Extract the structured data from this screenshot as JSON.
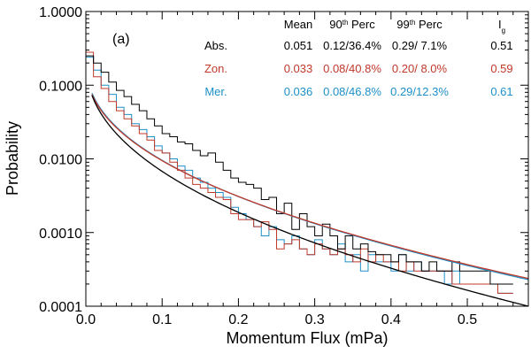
{
  "chart_data": {
    "type": "line",
    "panel_label": "(a)",
    "xlabel": "Momentum Flux (mPa)",
    "ylabel": "Probability",
    "xlim": [
      0,
      0.58
    ],
    "ylim": [
      0.0001,
      1.0
    ],
    "yscale": "log",
    "x_ticks": [
      0.0,
      0.1,
      0.2,
      0.3,
      0.4,
      0.5
    ],
    "x_tick_labels": [
      "0.0",
      "0.1",
      "0.2",
      "0.3",
      "0.4",
      "0.5"
    ],
    "y_ticks": [
      0.0001,
      0.001,
      0.01,
      0.1,
      1.0
    ],
    "y_tick_labels": [
      "0.0001",
      "0.0010",
      "0.0100",
      "0.1000",
      "1.0000"
    ],
    "grid": false,
    "bin_width": 0.01,
    "series": [
      {
        "name": "Abs.",
        "color": "#000000",
        "style": "step",
        "x_start": 0.0,
        "values": [
          0.25,
          0.2,
          0.15,
          0.11,
          0.085,
          0.07,
          0.055,
          0.045,
          0.035,
          0.028,
          0.022,
          0.02,
          0.017,
          0.016,
          0.013,
          0.011,
          0.012,
          0.009,
          0.007,
          0.0055,
          0.0048,
          0.0045,
          0.004,
          0.0028,
          0.003,
          0.0018,
          0.0025,
          0.0011,
          0.0018,
          0.0012,
          0.0009,
          0.0013,
          0.0009,
          0.0006,
          0.0009,
          0.0006,
          0.0007,
          0.00055,
          0.0005,
          0.0005,
          0.0004,
          0.0005,
          0.0004,
          0.0004,
          0.0003,
          0.0004,
          0.0003,
          0.0003,
          0.0004,
          0.0003,
          0.0003,
          0.0003,
          0.0003,
          0.0002,
          0.0002,
          0.0002
        ]
      },
      {
        "name": "Zon.",
        "color": "#c0392b",
        "style": "step",
        "x_start": 0.0,
        "values": [
          0.28,
          0.13,
          0.09,
          0.06,
          0.045,
          0.035,
          0.028,
          0.022,
          0.018,
          0.013,
          0.012,
          0.009,
          0.007,
          0.0055,
          0.0045,
          0.004,
          0.0035,
          0.003,
          0.0028,
          0.0018,
          0.0015,
          0.0015,
          0.0012,
          0.0014,
          0.0011,
          0.0006,
          0.0007,
          0.0008,
          0.0006,
          0.0005,
          0.0007,
          0.0006,
          0.0005,
          0.0006,
          0.0005,
          0.0004,
          0.0006,
          0.0004,
          0.0005,
          0.0004,
          0.0004,
          0.0003,
          0.0004,
          0.0003,
          0.0003,
          0.0003,
          0.0003,
          0.0003,
          0.0002,
          0.0002,
          0.0002,
          0.0002,
          0.0002,
          0.0002,
          0.00015,
          0.00015
        ]
      },
      {
        "name": "Mer.",
        "color": "#1e90c8",
        "style": "step",
        "x_start": 0.0,
        "values": [
          0.24,
          0.16,
          0.1,
          0.075,
          0.05,
          0.04,
          0.03,
          0.025,
          0.02,
          0.015,
          0.012,
          0.01,
          0.008,
          0.007,
          0.0055,
          0.0048,
          0.004,
          0.0035,
          0.003,
          0.0022,
          0.0018,
          0.0015,
          0.0012,
          0.0009,
          0.0012,
          0.0008,
          0.0007,
          0.0009,
          0.0006,
          0.0005,
          0.0008,
          0.0006,
          0.0005,
          0.0007,
          0.0004,
          0.0005,
          0.0003,
          0.0005,
          0.0004,
          0.0004,
          0.0003,
          0.0005,
          0.0003,
          0.0004,
          0.0003,
          0.0003,
          0.0003,
          0.0002,
          0.0003,
          0.0002,
          0.0002,
          0.0002,
          0.0002,
          0.0002,
          0.00015,
          0.00015
        ]
      }
    ],
    "fits": [
      {
        "name": "Abs.",
        "color": "#000000",
        "a": 0.223,
        "b": 0.57,
        "power": 1.7
      },
      {
        "name": "Zon.",
        "color": "#c0392b",
        "a": 0.2,
        "b": 0.505,
        "power": 1.55
      },
      {
        "name": "Mer.",
        "color": "#1e90c8",
        "a": 0.21,
        "b": 0.508,
        "power": 1.5
      }
    ],
    "table": {
      "headers": [
        {
          "text": "Mean"
        },
        {
          "base": "90",
          "sup": "th",
          "rest": " Perc"
        },
        {
          "base": "99",
          "sup": "th",
          "rest": " Perc"
        },
        {
          "base": "I",
          "sub": "g"
        }
      ],
      "rows": [
        {
          "label": "Abs.",
          "color": "#000000",
          "values": [
            "0.051",
            "0.12/36.4%",
            "0.29/ 7.1%",
            "0.51"
          ]
        },
        {
          "label": "Zon.",
          "color": "#c0392b",
          "values": [
            "0.033",
            "0.08/40.8%",
            "0.20/ 8.0%",
            "0.59"
          ]
        },
        {
          "label": "Mer.",
          "color": "#1e90c8",
          "values": [
            "0.036",
            "0.08/46.8%",
            "0.29/12.3%",
            "0.61"
          ]
        }
      ]
    }
  }
}
